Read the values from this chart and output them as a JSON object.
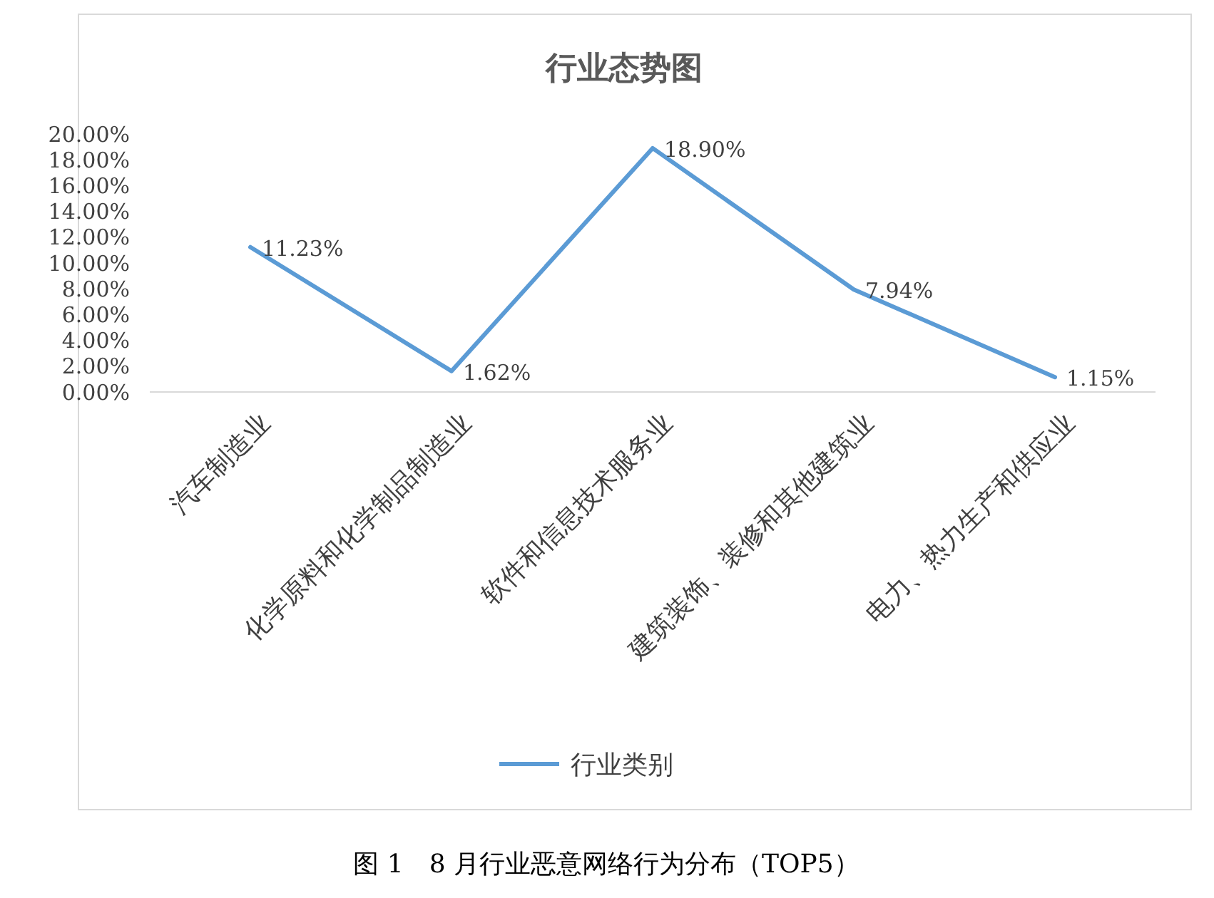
{
  "chart_data": {
    "type": "line",
    "title": "行业态势图",
    "categories": [
      "汽车制造业",
      "化学原料和化学制品制造业",
      "软件和信息技术服务业",
      "建筑装饰、装修和其他建筑业",
      "电力、热力生产和供应业"
    ],
    "series": [
      {
        "name": "行业类别",
        "color": "#5b9bd5",
        "values": [
          11.23,
          1.62,
          18.9,
          7.94,
          1.15
        ],
        "value_labels": [
          "11.23%",
          "1.62%",
          "18.90%",
          "7.94%",
          "1.15%"
        ]
      }
    ],
    "ylim": [
      0,
      20
    ],
    "yticks": [
      {
        "value": 0,
        "label": "0.00%"
      },
      {
        "value": 2,
        "label": "2.00%"
      },
      {
        "value": 4,
        "label": "4.00%"
      },
      {
        "value": 6,
        "label": "6.00%"
      },
      {
        "value": 8,
        "label": "8.00%"
      },
      {
        "value": 10,
        "label": "10.00%"
      },
      {
        "value": 12,
        "label": "12.00%"
      },
      {
        "value": 14,
        "label": "14.00%"
      },
      {
        "value": 16,
        "label": "16.00%"
      },
      {
        "value": 18,
        "label": "18.00%"
      },
      {
        "value": 20,
        "label": "20.00%"
      }
    ],
    "legend": "bottom",
    "marker": "none",
    "line_style": "solid",
    "annotations": [
      "图 1　8 月行业恶意网络行为分布（TOP5）"
    ]
  }
}
